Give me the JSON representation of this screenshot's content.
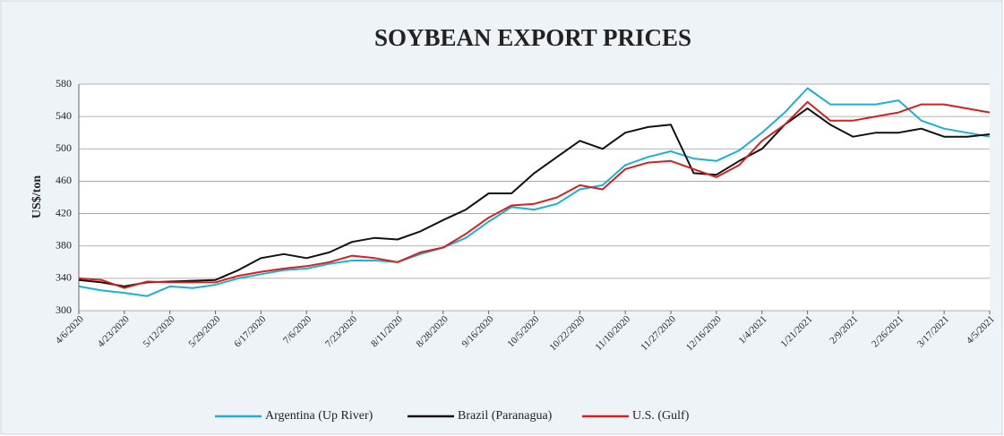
{
  "chart_data": {
    "type": "line",
    "title": "SOYBEAN EXPORT PRICES",
    "y_label": "US$/ton",
    "categories": [
      "4/6/2020",
      null,
      "4/23/2020",
      null,
      "5/12/2020",
      null,
      "5/29/2020",
      null,
      "6/17/2020",
      null,
      "7/6/2020",
      null,
      "7/23/2020",
      null,
      "8/11/2020",
      null,
      "8/28/2020",
      null,
      "9/16/2020",
      null,
      "10/5/2020",
      null,
      "10/22/2020",
      null,
      "11/10/2020",
      null,
      "11/27/2020",
      null,
      "12/16/2020",
      null,
      "1/4/2021",
      null,
      "1/21/2021",
      null,
      "2/9/2021",
      null,
      "2/26/2021",
      null,
      "3/17/2021",
      null,
      "4/5/2021"
    ],
    "series": [
      {
        "name": "Argentina (Up River)",
        "color": "#1fb0d0",
        "values": [
          330,
          325,
          322,
          318,
          330,
          328,
          332,
          340,
          345,
          350,
          352,
          358,
          362,
          362,
          360,
          370,
          378,
          390,
          410,
          428,
          425,
          432,
          450,
          455,
          480,
          490,
          497,
          488,
          485,
          498,
          520,
          545,
          575,
          555,
          555,
          555,
          560,
          535,
          525,
          520,
          515
        ]
      },
      {
        "name": "Brazil (Paranagua)",
        "color": "#111111",
        "values": [
          338,
          335,
          330,
          335,
          336,
          337,
          338,
          350,
          365,
          370,
          365,
          372,
          385,
          390,
          388,
          398,
          412,
          425,
          445,
          445,
          470,
          490,
          510,
          500,
          520,
          527,
          530,
          470,
          468,
          485,
          500,
          530,
          550,
          530,
          515,
          520,
          520,
          525,
          515,
          515,
          518
        ]
      },
      {
        "name": "U.S. (Gulf)",
        "color": "#d42020",
        "values": [
          340,
          338,
          328,
          336,
          335,
          335,
          335,
          343,
          348,
          352,
          355,
          360,
          368,
          365,
          360,
          372,
          378,
          395,
          415,
          430,
          432,
          440,
          455,
          450,
          475,
          483,
          485,
          475,
          465,
          480,
          510,
          530,
          558,
          535,
          535,
          540,
          545,
          555,
          555,
          550,
          545
        ]
      }
    ],
    "ylim": [
      300,
      580
    ],
    "yticks": [
      300,
      340,
      380,
      420,
      460,
      500,
      540,
      580
    ],
    "grid": true,
    "legend": "bottom"
  }
}
